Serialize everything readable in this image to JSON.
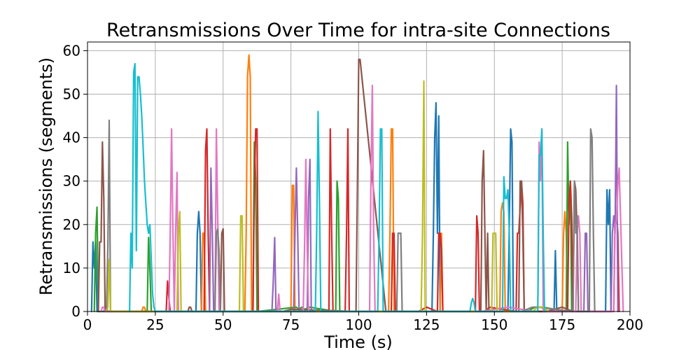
{
  "chart_data": {
    "type": "line",
    "title": "Retransmissions Over Time for intra-site Connections",
    "xlabel": "Time (s)",
    "ylabel": "Retransmissions (segments)",
    "xlim": [
      0,
      200
    ],
    "ylim": [
      0,
      62
    ],
    "xticks": [
      0,
      25,
      50,
      75,
      100,
      125,
      150,
      175,
      200
    ],
    "yticks": [
      0,
      10,
      20,
      30,
      40,
      50,
      60
    ],
    "grid": true,
    "legend": "none",
    "series": [
      {
        "color": "#1f77b4",
        "x": [
          1.5,
          2,
          2.5,
          3,
          3.5,
          40,
          40.5,
          41,
          41.5,
          42,
          127,
          127.5,
          128,
          128.5,
          129,
          129.5,
          130,
          155,
          155.5,
          156,
          156.5,
          157,
          172,
          172.5,
          173,
          191,
          191.5,
          192,
          192.5,
          193
        ],
        "y": [
          0,
          16,
          10,
          16,
          0,
          0,
          18,
          23,
          18,
          0,
          0,
          18,
          40,
          48,
          18,
          45,
          0,
          0,
          20,
          42,
          39,
          0,
          0,
          14,
          0,
          0,
          28,
          20,
          28,
          0
        ]
      },
      {
        "color": "#ff7f0e",
        "x": [
          20,
          20.5,
          21,
          21.5,
          42,
          42.5,
          43,
          43.5,
          58,
          58.5,
          59,
          59.5,
          60,
          60.5,
          75,
          75.5,
          76,
          76.5,
          111,
          111.5,
          112,
          112.5,
          113,
          130,
          130.5,
          131,
          152,
          152.5,
          153,
          153.5,
          154,
          175,
          175.5,
          176,
          176.5,
          177
        ],
        "y": [
          0,
          1,
          1,
          0,
          0,
          18,
          18,
          0,
          0,
          18,
          54,
          59,
          54,
          0,
          0,
          29,
          29,
          0,
          0,
          18,
          42,
          42,
          0,
          0,
          18,
          0,
          0,
          23,
          25,
          23,
          0,
          0,
          18,
          23,
          18,
          0
        ]
      },
      {
        "color": "#2ca02c",
        "x": [
          2.5,
          3,
          3.5,
          4,
          22,
          22.5,
          23,
          23.5,
          61,
          61.5,
          62,
          62.5,
          77,
          78,
          79,
          80,
          82,
          91.5,
          92,
          92.5,
          93,
          162,
          165,
          168,
          176.5,
          177,
          177.5,
          178,
          178.5
        ],
        "y": [
          0,
          18,
          24,
          0,
          0,
          17,
          10,
          0,
          0,
          39,
          30,
          0,
          1,
          0.5,
          1,
          0.5,
          1,
          0,
          30,
          26,
          0,
          0,
          1,
          1,
          0,
          39,
          20,
          30,
          0
        ]
      },
      {
        "color": "#d62728",
        "x": [
          29,
          29.5,
          30,
          30.5,
          43,
          43.5,
          44,
          44.5,
          45,
          61,
          61.5,
          62,
          62.5,
          63,
          89,
          89.5,
          90,
          90.5,
          95,
          95.5,
          96,
          96.5,
          112,
          112.5,
          113,
          113.5,
          122,
          125,
          129,
          129.5,
          130,
          130.5,
          131,
          143,
          143.5,
          144,
          144.5,
          145,
          147,
          148,
          158,
          158.5,
          159,
          160,
          160.5,
          161,
          177,
          177.5,
          178,
          178.5,
          179,
          194,
          194.5,
          195,
          195.5,
          196
        ],
        "y": [
          0,
          7,
          3,
          0,
          0,
          37,
          42,
          18,
          0,
          0,
          28,
          42,
          42,
          0,
          0,
          42,
          18,
          0,
          0,
          18,
          42,
          0,
          0,
          18,
          18,
          0,
          0,
          1,
          0,
          18,
          18,
          14,
          0,
          0,
          22,
          18,
          0,
          0,
          0,
          1,
          0,
          18,
          18,
          30,
          25,
          0,
          0,
          25,
          30,
          22,
          0,
          0,
          22,
          23,
          18,
          0
        ]
      },
      {
        "color": "#9467bd",
        "x": [
          6,
          6.5,
          7,
          7.5,
          45,
          45.5,
          46,
          46.5,
          68,
          68.5,
          69,
          69.5,
          76,
          76.5,
          77,
          77.5,
          78,
          81,
          81.5,
          82,
          82.5,
          183,
          183.5,
          184,
          184.5,
          193,
          193.5,
          194,
          194.5,
          195,
          195.5
        ],
        "y": [
          0,
          1,
          1,
          0,
          0,
          33,
          18,
          0,
          0,
          7,
          17,
          0,
          0,
          18,
          33,
          18,
          0,
          0,
          26,
          35,
          0,
          0,
          18,
          18,
          0,
          0,
          18,
          22,
          18,
          52,
          0
        ]
      },
      {
        "color": "#8c564b",
        "x": [
          4,
          4.5,
          5,
          5.5,
          6,
          6.5,
          37,
          37.5,
          38,
          38.5,
          49,
          49.5,
          50,
          50.5,
          72,
          75,
          99,
          99.5,
          100,
          100.5,
          110,
          145,
          145.5,
          146,
          146.5,
          147,
          147.5,
          148,
          159,
          159.5,
          160,
          160.5,
          161,
          169,
          175,
          179,
          179.5,
          180,
          180.5,
          181
        ],
        "y": [
          0,
          16,
          16,
          39,
          26,
          0,
          0,
          1,
          1,
          0,
          0,
          18,
          19,
          0,
          0,
          0.5,
          0,
          29,
          58,
          58,
          0,
          0,
          30,
          37,
          18,
          0,
          18,
          0,
          0,
          30,
          30,
          18,
          0,
          0,
          1,
          0,
          30,
          28,
          18,
          0
        ]
      },
      {
        "color": "#e377c2",
        "x": [
          5,
          5.5,
          6,
          6.5,
          30,
          30.5,
          31,
          31.5,
          32,
          32.5,
          33,
          33.5,
          47,
          47.5,
          48,
          48.5,
          70,
          70.5,
          71,
          79.5,
          80,
          80.5,
          81,
          81.5,
          104,
          104.5,
          105,
          105.5,
          106,
          145,
          150,
          155,
          165,
          166,
          166.5,
          167,
          167.5,
          168,
          180,
          180.5,
          181,
          181.5,
          182,
          194,
          194.5,
          195,
          195.5,
          196,
          197.5
        ],
        "y": [
          0,
          1,
          1,
          0,
          0,
          18,
          42,
          18,
          0,
          18,
          32,
          0,
          0,
          42,
          22,
          0,
          0,
          4,
          0,
          0,
          14,
          35,
          14,
          0,
          0,
          30,
          52,
          18,
          0,
          0,
          0.5,
          1,
          0,
          0,
          39,
          30,
          42,
          0,
          0,
          18,
          22,
          18,
          0,
          0,
          20,
          21,
          29,
          33,
          0
        ]
      },
      {
        "color": "#7f7f7f",
        "x": [
          7,
          7.5,
          8,
          8.5,
          47,
          47.5,
          48,
          48.5,
          49,
          114,
          114.5,
          115,
          115.5,
          116,
          160,
          162,
          164,
          166,
          179,
          179.5,
          180,
          180.5,
          181,
          185,
          185.5,
          186,
          186.5,
          187
        ],
        "y": [
          0,
          15,
          44,
          0,
          0,
          18,
          19,
          14,
          0,
          0,
          18,
          18,
          18,
          0,
          0,
          0.5,
          1,
          1,
          0,
          30,
          18,
          22,
          0,
          0,
          42,
          40,
          18,
          0
        ]
      },
      {
        "color": "#bcbd22",
        "x": [
          7,
          7.5,
          8,
          8.5,
          33,
          33.5,
          34,
          34.5,
          56,
          56.5,
          57,
          57.5,
          123,
          123.5,
          124,
          124.5,
          149,
          149.5,
          150,
          150.5,
          151,
          164,
          166,
          168,
          170
        ],
        "y": [
          0,
          1,
          12,
          0,
          0,
          18,
          23,
          0,
          0,
          22,
          22,
          0,
          0,
          18,
          53,
          0,
          0,
          18,
          18,
          18,
          0,
          0,
          1,
          1,
          0
        ]
      },
      {
        "color": "#17becf",
        "x": [
          15.5,
          16,
          16.5,
          17,
          17.5,
          18,
          18.5,
          19,
          19.5,
          20,
          20.5,
          21,
          21.5,
          22,
          22.5,
          23,
          23.5,
          24,
          24.5,
          25,
          84,
          84.5,
          85,
          85.5,
          86,
          107,
          107.5,
          108,
          108.5,
          109,
          141,
          141.5,
          142,
          142.5,
          143,
          153,
          153.5,
          154,
          154.5,
          155,
          155.5,
          156,
          166,
          166.5,
          167,
          167.5,
          168,
          168.5,
          169
        ],
        "y": [
          0,
          18,
          10,
          55,
          57,
          14,
          54,
          54,
          50,
          45,
          38,
          30,
          25,
          20,
          18,
          20,
          12,
          4,
          1,
          0,
          0,
          18,
          46,
          26,
          0,
          0,
          18,
          42,
          42,
          0,
          0,
          2,
          3,
          2,
          0,
          0,
          31,
          26,
          26,
          28,
          18,
          0,
          0,
          36,
          36,
          42,
          18,
          0,
          0
        ]
      }
    ]
  }
}
